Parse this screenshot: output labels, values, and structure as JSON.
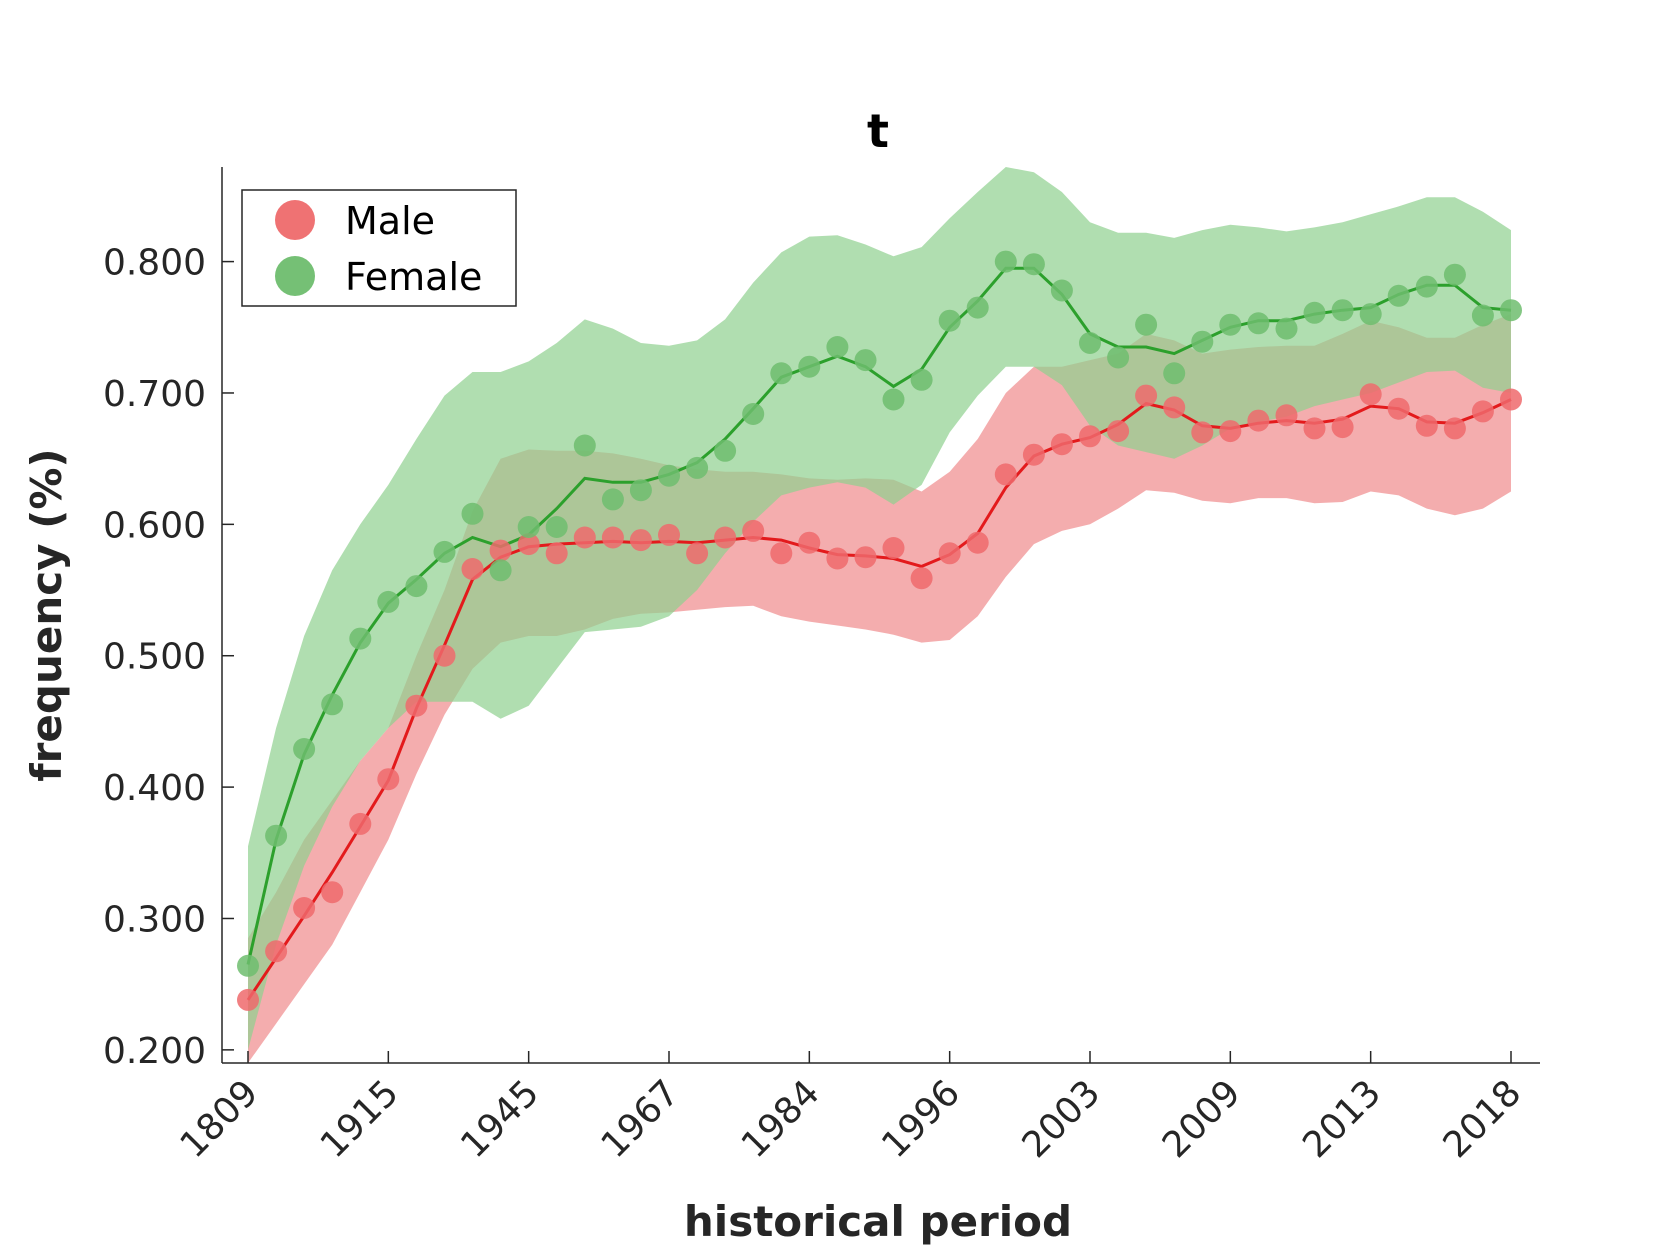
{
  "chart_data": {
    "type": "line",
    "title": "t",
    "xlabel": "historical period",
    "ylabel": "frequency (%)",
    "x_tick_labels": [
      "1809",
      "1915",
      "1945",
      "1967",
      "1984",
      "1996",
      "2003",
      "2009",
      "2013",
      "2018"
    ],
    "y_ticks": [
      0.2,
      0.3,
      0.4,
      0.5,
      0.6,
      0.7,
      0.8
    ],
    "y_tick_labels": [
      "0.200",
      "0.300",
      "0.400",
      "0.500",
      "0.600",
      "0.700",
      "0.800"
    ],
    "ylim": [
      0.19,
      0.872
    ],
    "n_points": 46,
    "legend": {
      "placement": "top-left"
    },
    "grid": false,
    "series": [
      {
        "name": "Male",
        "color": "#e31a1c",
        "marker_color": "#ee6a6c",
        "band_color": "#ef8a8c",
        "points": [
          0.238,
          0.275,
          0.308,
          0.32,
          0.372,
          0.406,
          0.462,
          0.5,
          0.566,
          0.58,
          0.585,
          0.578,
          0.59,
          0.59,
          0.588,
          0.592,
          0.578,
          0.59,
          0.595,
          0.578,
          0.586,
          0.574,
          0.575,
          0.582,
          0.559,
          0.578,
          0.586,
          0.638,
          0.653,
          0.661,
          0.667,
          0.671,
          0.698,
          0.689,
          0.67,
          0.671,
          0.679,
          0.683,
          0.673,
          0.674,
          0.699,
          0.688,
          0.675,
          0.673,
          0.686,
          0.695
        ],
        "trend": [
          0.238,
          0.27,
          0.302,
          0.335,
          0.37,
          0.405,
          0.46,
          0.508,
          0.558,
          0.575,
          0.583,
          0.585,
          0.586,
          0.587,
          0.586,
          0.587,
          0.586,
          0.588,
          0.59,
          0.588,
          0.582,
          0.577,
          0.576,
          0.574,
          0.568,
          0.577,
          0.593,
          0.628,
          0.652,
          0.661,
          0.666,
          0.676,
          0.692,
          0.687,
          0.675,
          0.673,
          0.677,
          0.679,
          0.677,
          0.68,
          0.69,
          0.688,
          0.678,
          0.677,
          0.685,
          0.695
        ],
        "band_upper": [
          0.285,
          0.32,
          0.36,
          0.39,
          0.42,
          0.445,
          0.5,
          0.55,
          0.61,
          0.65,
          0.657,
          0.656,
          0.656,
          0.654,
          0.65,
          0.645,
          0.642,
          0.64,
          0.64,
          0.638,
          0.635,
          0.634,
          0.635,
          0.634,
          0.625,
          0.64,
          0.665,
          0.7,
          0.72,
          0.72,
          0.725,
          0.73,
          0.745,
          0.74,
          0.73,
          0.733,
          0.735,
          0.736,
          0.736,
          0.745,
          0.755,
          0.75,
          0.742,
          0.742,
          0.752,
          0.76
        ],
        "band_lower": [
          0.19,
          0.22,
          0.25,
          0.28,
          0.32,
          0.36,
          0.41,
          0.455,
          0.49,
          0.51,
          0.515,
          0.515,
          0.52,
          0.528,
          0.532,
          0.533,
          0.535,
          0.537,
          0.538,
          0.53,
          0.526,
          0.523,
          0.52,
          0.516,
          0.51,
          0.512,
          0.53,
          0.56,
          0.585,
          0.595,
          0.6,
          0.612,
          0.626,
          0.624,
          0.618,
          0.616,
          0.62,
          0.62,
          0.616,
          0.617,
          0.625,
          0.622,
          0.612,
          0.607,
          0.612,
          0.625
        ]
      },
      {
        "name": "Female",
        "color": "#2ca02c",
        "marker_color": "#6ebd6e",
        "band_color": "#8fd08f",
        "points": [
          0.264,
          0.363,
          0.429,
          0.463,
          0.513,
          0.541,
          0.553,
          0.579,
          0.608,
          0.565,
          0.598,
          0.598,
          0.66,
          0.619,
          0.626,
          0.637,
          0.643,
          0.656,
          0.684,
          0.715,
          0.72,
          0.735,
          0.725,
          0.695,
          0.71,
          0.755,
          0.765,
          0.8,
          0.798,
          0.778,
          0.738,
          0.727,
          0.752,
          0.715,
          0.739,
          0.752,
          0.753,
          0.749,
          0.761,
          0.763,
          0.76,
          0.774,
          0.781,
          0.79,
          0.759,
          0.763
        ],
        "trend": [
          0.265,
          0.36,
          0.425,
          0.47,
          0.51,
          0.54,
          0.558,
          0.578,
          0.59,
          0.583,
          0.592,
          0.612,
          0.635,
          0.632,
          0.632,
          0.638,
          0.647,
          0.665,
          0.688,
          0.712,
          0.72,
          0.728,
          0.72,
          0.705,
          0.718,
          0.75,
          0.77,
          0.795,
          0.795,
          0.775,
          0.745,
          0.735,
          0.735,
          0.73,
          0.74,
          0.75,
          0.755,
          0.755,
          0.76,
          0.763,
          0.765,
          0.775,
          0.782,
          0.782,
          0.765,
          0.763
        ],
        "band_upper": [
          0.355,
          0.445,
          0.515,
          0.565,
          0.6,
          0.63,
          0.665,
          0.698,
          0.716,
          0.716,
          0.724,
          0.738,
          0.756,
          0.749,
          0.738,
          0.736,
          0.74,
          0.756,
          0.784,
          0.807,
          0.819,
          0.82,
          0.813,
          0.804,
          0.811,
          0.833,
          0.853,
          0.872,
          0.868,
          0.853,
          0.83,
          0.822,
          0.822,
          0.818,
          0.824,
          0.828,
          0.826,
          0.823,
          0.826,
          0.83,
          0.836,
          0.842,
          0.849,
          0.849,
          0.838,
          0.824
        ],
        "band_lower": [
          0.2,
          0.28,
          0.34,
          0.385,
          0.42,
          0.445,
          0.465,
          0.465,
          0.465,
          0.452,
          0.462,
          0.49,
          0.518,
          0.52,
          0.522,
          0.53,
          0.55,
          0.578,
          0.602,
          0.622,
          0.628,
          0.632,
          0.628,
          0.615,
          0.63,
          0.67,
          0.698,
          0.72,
          0.72,
          0.706,
          0.675,
          0.66,
          0.655,
          0.65,
          0.66,
          0.673,
          0.678,
          0.682,
          0.69,
          0.695,
          0.7,
          0.708,
          0.716,
          0.717,
          0.704,
          0.7
        ]
      }
    ]
  }
}
